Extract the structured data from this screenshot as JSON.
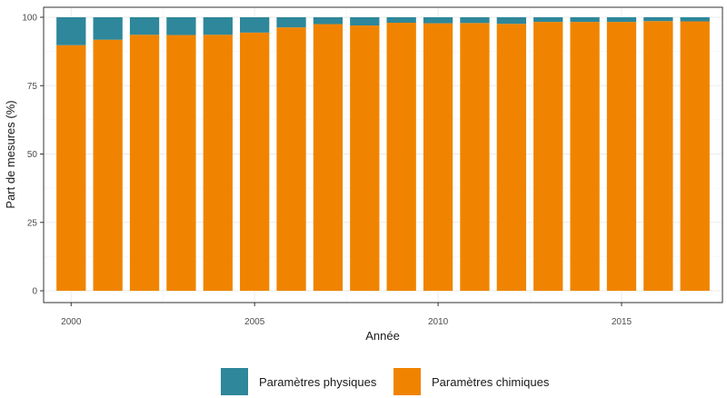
{
  "chart_data": {
    "type": "bar",
    "stacked": true,
    "title": "",
    "xlabel": "Année",
    "ylabel": "Part de mesures (%)",
    "x": [
      2000,
      2001,
      2002,
      2003,
      2004,
      2005,
      2006,
      2007,
      2008,
      2009,
      2010,
      2011,
      2012,
      2013,
      2014,
      2015,
      2016,
      2017
    ],
    "xticks": [
      2000,
      2005,
      2010,
      2015
    ],
    "xticklabels": [
      "2000",
      "2005",
      "2010",
      "2015"
    ],
    "xlim": [
      1999.25,
      2017.75
    ],
    "ylim": [
      0,
      100
    ],
    "yticks": [
      0,
      25,
      50,
      75,
      100
    ],
    "yticklabels": [
      "0",
      "25",
      "50",
      "75",
      "100"
    ],
    "grid": true,
    "legend_position": "bottom",
    "series": [
      {
        "name": "Paramètres chimiques",
        "color": "#F08400",
        "values": [
          89.8,
          91.8,
          93.6,
          93.5,
          93.6,
          94.4,
          96.3,
          97.5,
          97.0,
          98.0,
          97.8,
          97.9,
          97.6,
          98.3,
          98.3,
          98.3,
          98.6,
          98.5
        ]
      },
      {
        "name": "Paramètres physiques",
        "color": "#2E879A",
        "values": [
          10.2,
          8.2,
          6.4,
          6.5,
          6.4,
          5.6,
          3.7,
          2.5,
          3.0,
          2.0,
          2.2,
          2.1,
          2.4,
          1.7,
          1.7,
          1.7,
          1.4,
          1.5
        ]
      }
    ],
    "legend": [
      {
        "name": "Paramètres physiques",
        "color": "#2E879A"
      },
      {
        "name": "Paramètres chimiques",
        "color": "#F08400"
      }
    ]
  }
}
